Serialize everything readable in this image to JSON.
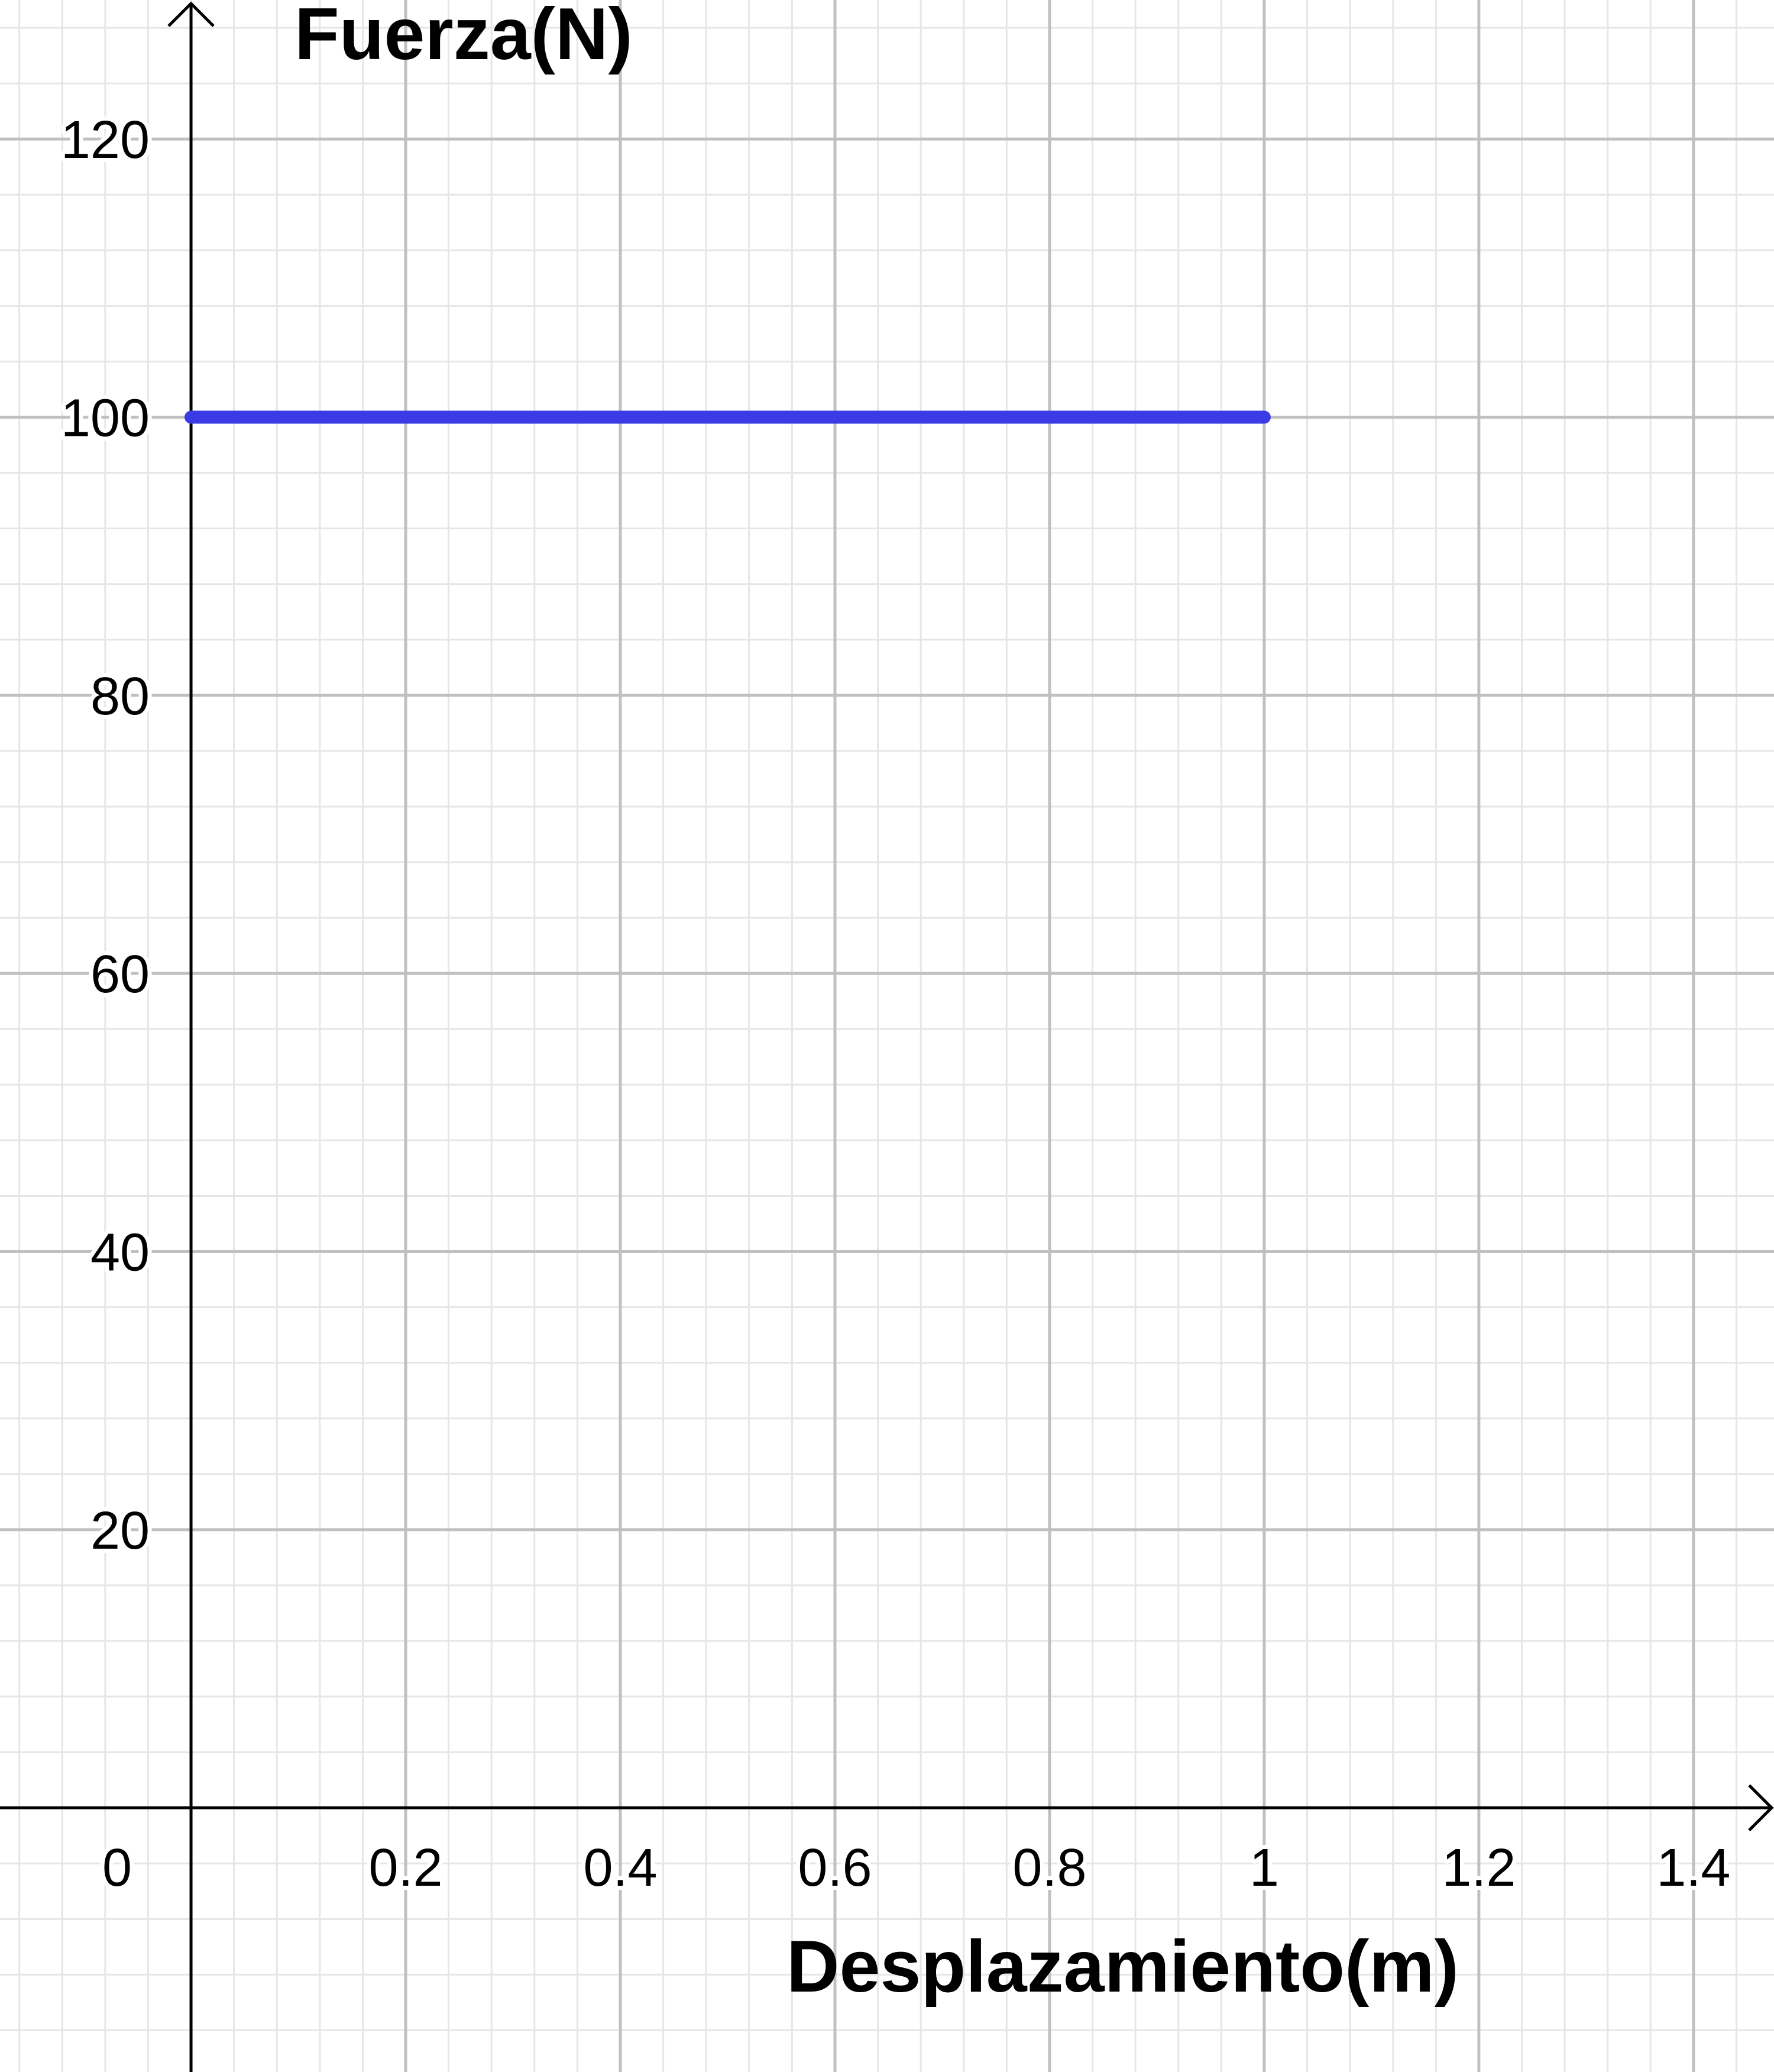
{
  "chart_data": {
    "type": "line",
    "title": "",
    "xlabel": "Desplazamiento(m)",
    "ylabel": "Fuerza(N)",
    "xlim": [
      -0.178,
      1.475
    ],
    "ylim": [
      -19,
      130
    ],
    "x_ticks": [
      {
        "value": 0.2,
        "label": "0.2"
      },
      {
        "value": 0.4,
        "label": "0.4"
      },
      {
        "value": 0.6,
        "label": "0.6"
      },
      {
        "value": 0.8,
        "label": "0.8"
      },
      {
        "value": 1,
        "label": "1"
      },
      {
        "value": 1.2,
        "label": "1.2"
      },
      {
        "value": 1.4,
        "label": "1.4"
      }
    ],
    "y_ticks": [
      {
        "value": 20,
        "label": "20"
      },
      {
        "value": 40,
        "label": "40"
      },
      {
        "value": 60,
        "label": "60"
      },
      {
        "value": 80,
        "label": "80"
      },
      {
        "value": 100,
        "label": "100"
      },
      {
        "value": 120,
        "label": "120"
      }
    ],
    "origin_label": "0",
    "major_grid_step": {
      "x": 0.2,
      "y": 20
    },
    "minor_grid_step": {
      "x": 0.04,
      "y": 4
    },
    "grid": true,
    "legend": "none",
    "series": [
      {
        "x": [
          0,
          1
        ],
        "y": [
          100,
          100
        ],
        "color": "#3b3be6"
      }
    ],
    "colors": {
      "major_grid": "#c0c0c0",
      "minor_grid": "#e6e6e6",
      "axis": "#000000",
      "background": "#ffffff"
    }
  }
}
